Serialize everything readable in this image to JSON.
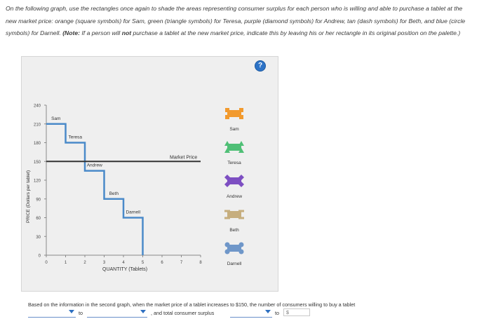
{
  "instructions": {
    "p1": "On the following graph, use the rectangles once again to shade the areas representing consumer surplus for each person who is willing and able to purchase a tablet at the new market price: orange (square symbols) for Sam, green (triangle symbols) for Teresa, purple (diamond symbols) for Andrew, tan (dash symbols) for Beth, and blue (circle symbols) for Darnell.",
    "note_label": "(Note:",
    "note_text": " If a person will ",
    "note_not": "not",
    "note_text2": " purchase a tablet at the new market price, indicate this by leaving his or her rectangle in its original position on the palette.)"
  },
  "help_icon": "?",
  "graph": {
    "ylabel": "PRICE (Dollars per tablet)",
    "xlabel": "QUANTITY (Tablets)",
    "y_ticks": [
      "240",
      "210",
      "180",
      "150",
      "120",
      "90",
      "60",
      "30",
      "0"
    ],
    "x_ticks": [
      "0",
      "1",
      "2",
      "3",
      "4",
      "5",
      "6",
      "7",
      "8"
    ],
    "market_price_label": "Market Price",
    "step_labels": [
      "Sam",
      "Teresa",
      "Andrew",
      "Beth",
      "Darnell"
    ]
  },
  "chart_data": {
    "type": "line",
    "title": "",
    "xlabel": "QUANTITY (Tablets)",
    "ylabel": "PRICE (Dollars per tablet)",
    "xlim": [
      0,
      8
    ],
    "ylim": [
      0,
      240
    ],
    "demand_steps": [
      {
        "name": "Sam",
        "price": 210,
        "x_start": 0,
        "x_end": 1
      },
      {
        "name": "Teresa",
        "price": 180,
        "x_start": 1,
        "x_end": 2
      },
      {
        "name": "Andrew",
        "price": 135,
        "x_start": 2,
        "x_end": 3
      },
      {
        "name": "Beth",
        "price": 90,
        "x_start": 3,
        "x_end": 4
      },
      {
        "name": "Darnell",
        "price": 60,
        "x_start": 4,
        "x_end": 5
      }
    ],
    "market_price": 150
  },
  "palette": {
    "items": [
      {
        "label": "Sam",
        "color": "#f29a2e",
        "symbol": "square"
      },
      {
        "label": "Teresa",
        "color": "#4fbf76",
        "symbol": "triangle"
      },
      {
        "label": "Andrew",
        "color": "#7d4fc2",
        "symbol": "diamond"
      },
      {
        "label": "Beth",
        "color": "#c6ae7e",
        "symbol": "dash"
      },
      {
        "label": "Darnell",
        "color": "#6f97c9",
        "symbol": "circle"
      }
    ]
  },
  "question": {
    "text": "Based on the information in the second graph, when the market price of a tablet increases to $150, the number of consumers willing to buy a tablet",
    "to1": "to",
    "and_text": ", and total consumer surplus",
    "to2": "to",
    "dollar": "$"
  }
}
